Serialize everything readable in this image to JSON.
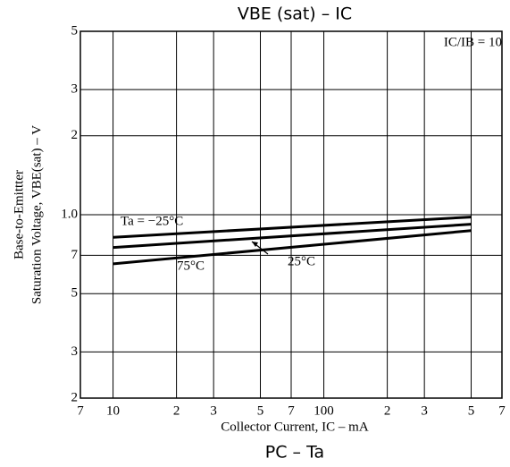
{
  "chart_data": {
    "type": "line",
    "title": "VBE (sat)  –  IC",
    "subtitle": "PC  –  Ta",
    "x_label": "Collector Current, IC – mA",
    "y_label": [
      "Base-to-Emittter",
      "Saturation Voltage, VBE(sat) – V"
    ],
    "annotations": [
      "IC/IB = 10"
    ],
    "x": [
      10,
      500
    ],
    "series": [
      {
        "name": "Ta = −25°C",
        "color": "#000000",
        "values": [
          0.82,
          0.98
        ]
      },
      {
        "name": "25°C",
        "color": "#000000",
        "values": [
          0.75,
          0.92
        ]
      },
      {
        "name": "75°C",
        "color": "#000000",
        "values": [
          0.65,
          0.87
        ]
      }
    ],
    "xlim": [
      7,
      700
    ],
    "ylim": [
      0.2,
      5
    ],
    "log_x": true,
    "log_y": true,
    "grid": true,
    "xticks": [
      {
        "value": 7,
        "label": "7"
      },
      10,
      {
        "value": 20,
        "label": "2"
      },
      {
        "value": 30,
        "label": "3"
      },
      {
        "value": 50,
        "label": "5"
      },
      {
        "value": 70,
        "label": "7"
      },
      100,
      {
        "value": 200,
        "label": "2"
      },
      {
        "value": 300,
        "label": "3"
      },
      {
        "value": 500,
        "label": "5"
      },
      {
        "value": 700,
        "label": "7"
      }
    ],
    "yticks": [
      {
        "value": 0.2,
        "label": "2"
      },
      {
        "value": 0.3,
        "label": "3"
      },
      {
        "value": 0.5,
        "label": "5"
      },
      {
        "value": 0.7,
        "label": "7"
      },
      {
        "value": 1,
        "label": "1.0"
      },
      2,
      3,
      5
    ]
  }
}
